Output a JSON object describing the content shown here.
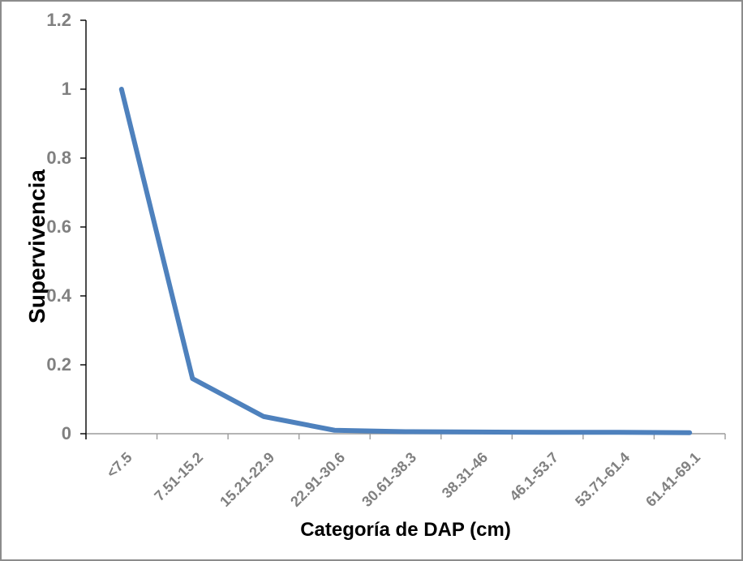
{
  "chart_data": {
    "type": "line",
    "title": "",
    "xlabel": "Categoría de DAP (cm)",
    "ylabel": "Supervivencia",
    "categories": [
      "<7.5",
      "7.51-15.2",
      "15.21-22.9",
      "22.91-30.6",
      "30.61-38.3",
      "38.31-46",
      "46.1-53.7",
      "53.71-61.4",
      "61.41-69.1"
    ],
    "series": [
      {
        "name": "Supervivencia",
        "values": [
          1,
          0.16,
          0.05,
          0.01,
          0.006,
          0.005,
          0.004,
          0.004,
          0.003
        ]
      }
    ],
    "ylim": [
      0,
      1.2
    ],
    "yticks": {
      "values": [
        0,
        0.2,
        0.4,
        0.6,
        0.8,
        1,
        1.2
      ],
      "labels": [
        "0",
        "0.2",
        "0.4",
        "0.6",
        "0.8",
        "1",
        "1.2"
      ]
    },
    "grid": "off",
    "legend": "none",
    "colors": {
      "line": "#4E81BD",
      "tick_label": "#808080",
      "axis_title": "#000000",
      "x_axis_line": "#9C9C9C",
      "y_axis_line": "#000000",
      "frame_border": "#8C8C8C"
    }
  }
}
